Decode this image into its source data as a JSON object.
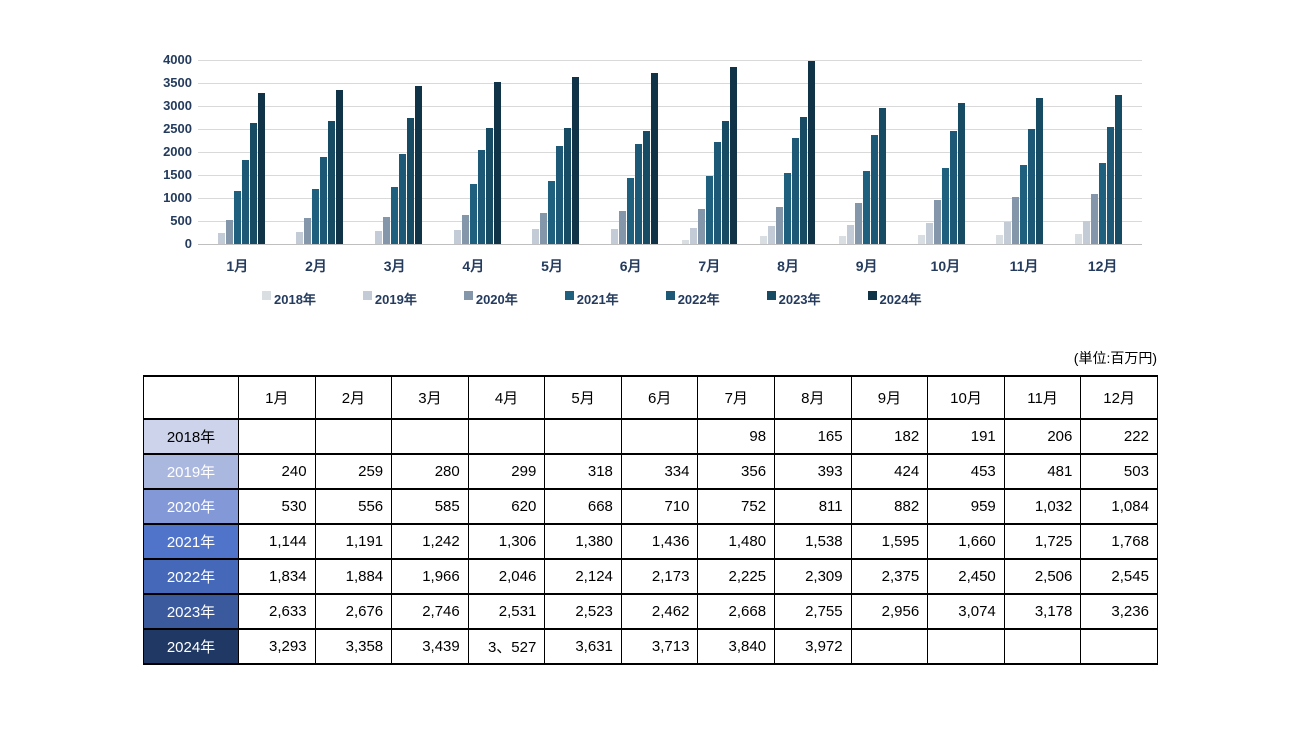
{
  "chart_data": {
    "type": "bar",
    "title": "",
    "xlabel": "",
    "ylabel": "",
    "ylim": [
      0,
      4000
    ],
    "ytick_step": 500,
    "ytick_labels": [
      "4000",
      "3500",
      "3000",
      "2500",
      "2000",
      "1500",
      "1000",
      "500",
      "0"
    ],
    "grid": "horizontal",
    "legend_position": "bottom",
    "text_color": "#243b5e",
    "gridline_color": "#d9d9d9",
    "axisline_color": "#bfbfbf",
    "categories": [
      "1月",
      "2月",
      "3月",
      "4月",
      "5月",
      "6月",
      "7月",
      "8月",
      "9月",
      "10月",
      "11月",
      "12月"
    ],
    "series": [
      {
        "name": "2018年",
        "color": "#d9dee3",
        "values": [
          null,
          null,
          null,
          null,
          null,
          null,
          98,
          165,
          182,
          191,
          206,
          222
        ]
      },
      {
        "name": "2019年",
        "color": "#c3ccd6",
        "values": [
          240,
          259,
          280,
          299,
          318,
          334,
          356,
          393,
          424,
          453,
          481,
          503
        ]
      },
      {
        "name": "2020年",
        "color": "#8496a9",
        "values": [
          530,
          556,
          585,
          620,
          668,
          710,
          752,
          811,
          882,
          959,
          1032,
          1084
        ]
      },
      {
        "name": "2021年",
        "color": "#1f607f",
        "values": [
          1144,
          1191,
          1242,
          1306,
          1380,
          1436,
          1480,
          1538,
          1595,
          1660,
          1725,
          1768
        ]
      },
      {
        "name": "2022年",
        "color": "#1d5876",
        "values": [
          1834,
          1884,
          1966,
          2046,
          2124,
          2173,
          2225,
          2309,
          2375,
          2450,
          2506,
          2545
        ]
      },
      {
        "name": "2023年",
        "color": "#174a63",
        "values": [
          2633,
          2676,
          2746,
          2531,
          2523,
          2462,
          2668,
          2755,
          2956,
          3074,
          3178,
          3236
        ]
      },
      {
        "name": "2024年",
        "color": "#113348",
        "values": [
          3293,
          3358,
          3439,
          3527,
          3631,
          3713,
          3840,
          3972,
          null,
          null,
          null,
          null
        ]
      }
    ]
  },
  "table": {
    "unit_label": "(単位:百万円)",
    "corner_header": "",
    "col_headers": [
      "1月",
      "2月",
      "3月",
      "4月",
      "5月",
      "6月",
      "7月",
      "8月",
      "9月",
      "10月",
      "11月",
      "12月"
    ],
    "rows": [
      {
        "label": "2018年",
        "label_bg": "#ccd3eb",
        "label_color": "#000000",
        "cells": [
          "",
          "",
          "",
          "",
          "",
          "",
          "98",
          "165",
          "182",
          "191",
          "206",
          "222"
        ]
      },
      {
        "label": "2019年",
        "label_bg": "#aab8e0",
        "label_color": "#ffffff",
        "cells": [
          "240",
          "259",
          "280",
          "299",
          "318",
          "334",
          "356",
          "393",
          "424",
          "453",
          "481",
          "503"
        ]
      },
      {
        "label": "2020年",
        "label_bg": "#8398d6",
        "label_color": "#ffffff",
        "cells": [
          "530",
          "556",
          "585",
          "620",
          "668",
          "710",
          "752",
          "811",
          "882",
          "959",
          "1,032",
          "1,084"
        ]
      },
      {
        "label": "2021年",
        "label_bg": "#4f74c9",
        "label_color": "#ffffff",
        "cells": [
          "1,144",
          "1,191",
          "1,242",
          "1,306",
          "1,380",
          "1,436",
          "1,480",
          "1,538",
          "1,595",
          "1,660",
          "1,725",
          "1,768"
        ]
      },
      {
        "label": "2022年",
        "label_bg": "#4568b8",
        "label_color": "#ffffff",
        "cells": [
          "1,834",
          "1,884",
          "1,966",
          "2,046",
          "2,124",
          "2,173",
          "2,225",
          "2,309",
          "2,375",
          "2,450",
          "2,506",
          "2,545"
        ]
      },
      {
        "label": "2023年",
        "label_bg": "#3b5a9d",
        "label_color": "#ffffff",
        "cells": [
          "2,633",
          "2,676",
          "2,746",
          "2,531",
          "2,523",
          "2,462",
          "2,668",
          "2,755",
          "2,956",
          "3,074",
          "3,178",
          "3,236"
        ]
      },
      {
        "label": "2024年",
        "label_bg": "#203864",
        "label_color": "#ffffff",
        "cells": [
          "3,293",
          "3,358",
          "3,439",
          "3、527",
          "3,631",
          "3,713",
          "3,840",
          "3,972",
          "",
          "",
          "",
          ""
        ]
      }
    ]
  }
}
